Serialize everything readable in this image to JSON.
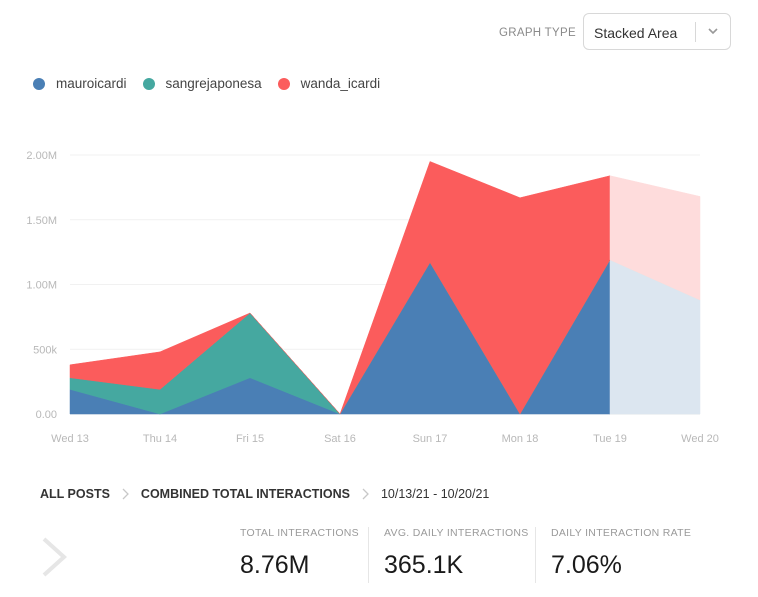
{
  "header": {
    "graph_type_label": "GRAPH TYPE",
    "graph_type_value": "Stacked Area"
  },
  "legend": [
    {
      "label": "mauroicardi",
      "color": "#4a7fb5"
    },
    {
      "label": "sangrejaponesa",
      "color": "#45a8a0"
    },
    {
      "label": "wanda_icardi",
      "color": "#fb5c5c"
    }
  ],
  "chart_data": {
    "type": "area",
    "stacked": true,
    "categories": [
      "Wed 13",
      "Thu 14",
      "Fri 15",
      "Sat 16",
      "Sun 17",
      "Mon 18",
      "Tue 19",
      "Wed 20"
    ],
    "series": [
      {
        "name": "mauroicardi",
        "color": "#4a7fb5",
        "faded_color": "#dce6f0",
        "values": [
          190000,
          0,
          280000,
          0,
          1170000,
          0,
          1190000,
          880000
        ]
      },
      {
        "name": "sangrejaponesa",
        "color": "#45a8a0",
        "faded_color": "#d5ecea",
        "values": [
          90000,
          190000,
          500000,
          0,
          0,
          0,
          0,
          0
        ]
      },
      {
        "name": "wanda_icardi",
        "color": "#fb5c5c",
        "faded_color": "#fedcdc",
        "values": [
          100000,
          290000,
          0,
          0,
          780000,
          1670000,
          650000,
          800000
        ]
      }
    ],
    "projected_from_index": 6,
    "ylim": [
      0,
      2000000
    ],
    "yticks": [
      0,
      500000,
      1000000,
      1500000,
      2000000
    ],
    "ytick_labels": [
      "0.00",
      "500k",
      "1.00M",
      "1.50M",
      "2.00M"
    ],
    "grid": true,
    "title": "",
    "xlabel": "",
    "ylabel": ""
  },
  "breadcrumb": {
    "all_posts": "ALL POSTS",
    "metric": "COMBINED TOTAL INTERACTIONS",
    "date_range": "10/13/21 - 10/20/21"
  },
  "stats": [
    {
      "label": "TOTAL INTERACTIONS",
      "value": "8.76M"
    },
    {
      "label": "AVG. DAILY INTERACTIONS",
      "value": "365.1K"
    },
    {
      "label": "DAILY INTERACTION RATE",
      "value": "7.06%"
    }
  ]
}
